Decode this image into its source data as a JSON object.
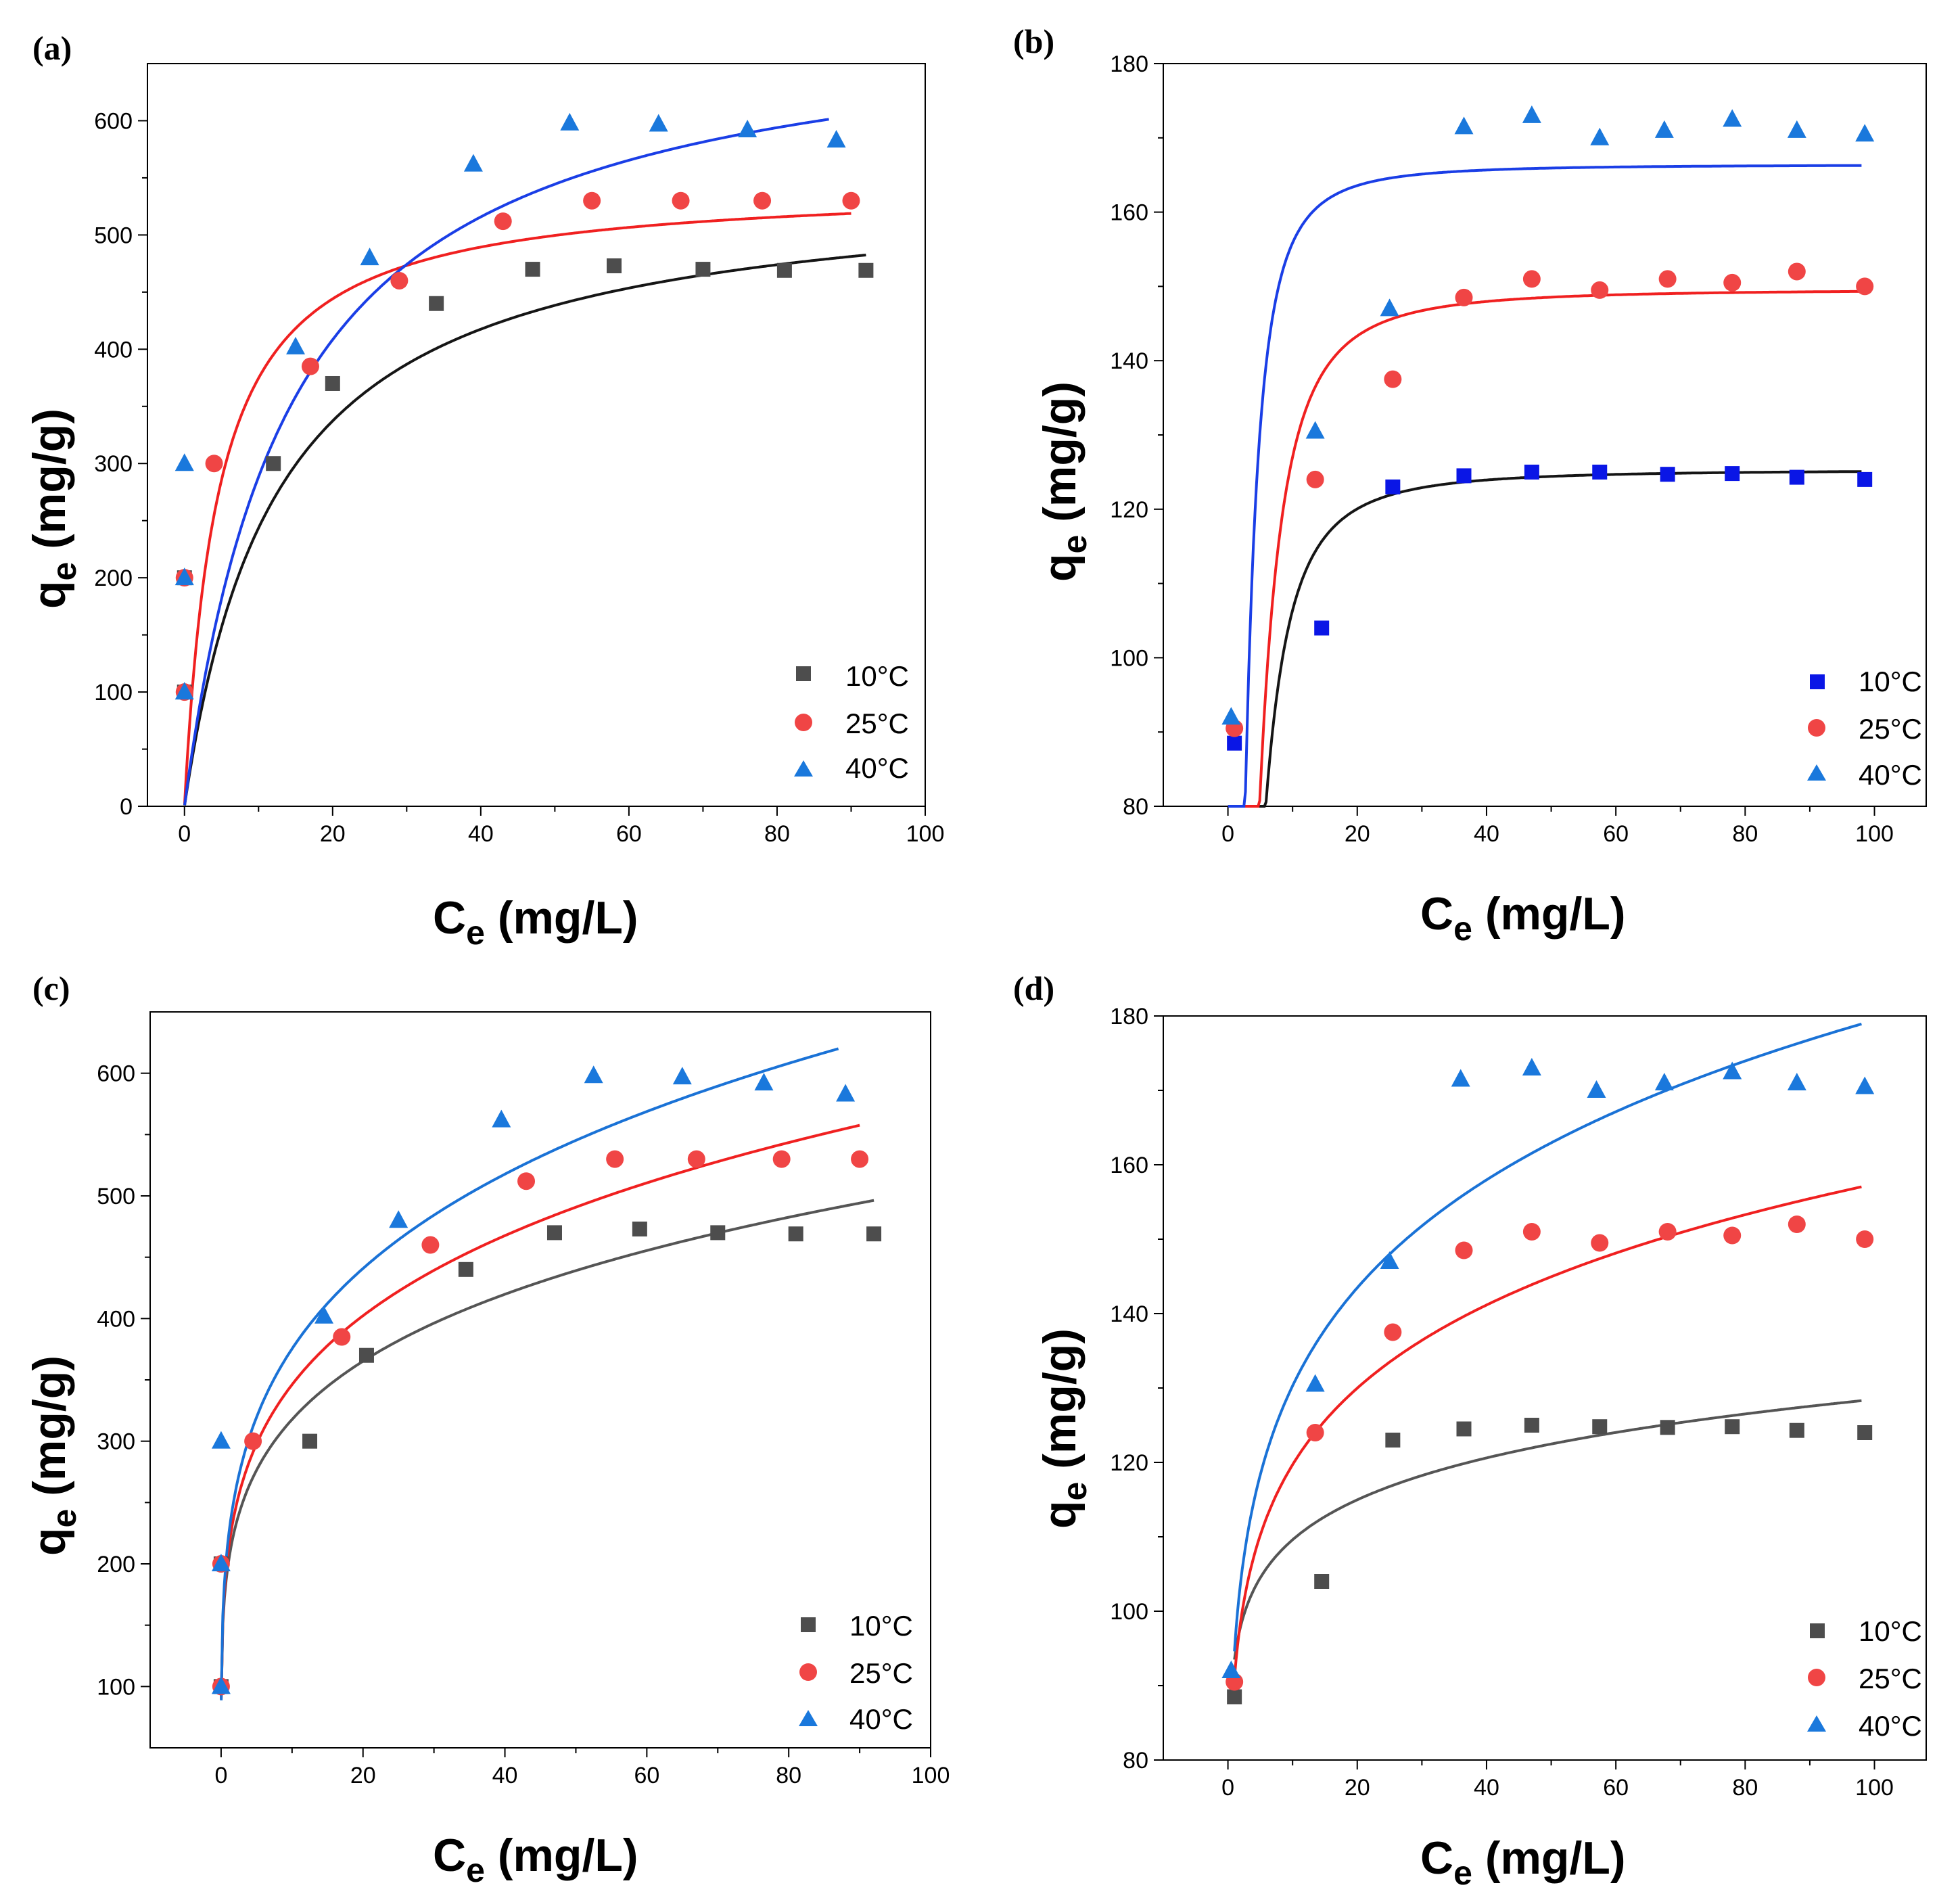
{
  "panels": [
    {
      "label": "(a)",
      "xlabel_main": "C",
      "xlabel_sub": "e",
      "xlabel_unit": " (mg/L)",
      "ylabel_main": "q",
      "ylabel_sub": "e",
      "ylabel_unit": " (mg/g)",
      "legend": [
        "10°C",
        "25°C",
        "40°C"
      ]
    },
    {
      "label": "(b)",
      "xlabel_main": "C",
      "xlabel_sub": "e",
      "xlabel_unit": " (mg/L)",
      "ylabel_main": "q",
      "ylabel_sub": "e",
      "ylabel_unit": " (mg/g)",
      "legend": [
        "10°C",
        "25°C",
        "40°C"
      ]
    },
    {
      "label": "(c)",
      "xlabel_main": "C",
      "xlabel_sub": "e",
      "xlabel_unit": " (mg/L)",
      "ylabel_main": "q",
      "ylabel_sub": "e",
      "ylabel_unit": " (mg/g)",
      "legend": [
        "10°C",
        "25°C",
        "40°C"
      ]
    },
    {
      "label": "(d)",
      "xlabel_main": "C",
      "xlabel_sub": "e",
      "xlabel_unit": " (mg/L)",
      "ylabel_main": "q",
      "ylabel_sub": "e",
      "ylabel_unit": " (mg/g)",
      "legend": [
        "10°C",
        "25°C",
        "40°C"
      ]
    }
  ],
  "colors": {
    "s10": "#4d4d4d",
    "s10_b": "#0a16e6",
    "s10_fit_a": "#151515",
    "s10_fit_d": "#555555",
    "s25": "#f04545",
    "s25_line": "#f02020",
    "s40": "#1a78dc",
    "s40_line": "#1a3ee6",
    "s40_line_c": "#1a72d6"
  },
  "chart_data": [
    {
      "type": "scatter",
      "panel": "a",
      "xlim": [
        -5,
        100
      ],
      "ylim": [
        0,
        650
      ],
      "xticks": [
        0,
        20,
        40,
        60,
        80,
        100
      ],
      "yticks": [
        0,
        100,
        200,
        300,
        400,
        500,
        600
      ],
      "xlabel": "Ce (mg/L)",
      "ylabel": "qe (mg/g)",
      "series": [
        {
          "name": "10°C",
          "marker": "square",
          "x": [
            0,
            0,
            12,
            20,
            34,
            47,
            58,
            70,
            81,
            92
          ],
          "y": [
            100,
            200,
            300,
            370,
            440,
            470,
            473,
            470,
            469,
            469
          ],
          "fit": {
            "model": "langmuir",
            "qm": 548,
            "K": 0.08,
            "x_end": 92
          }
        },
        {
          "name": "25°C",
          "marker": "circle",
          "x": [
            0,
            0,
            4,
            17,
            29,
            43,
            55,
            67,
            78,
            90
          ],
          "y": [
            100,
            200,
            300,
            385,
            460,
            512,
            530,
            530,
            530,
            530
          ],
          "fit": {
            "model": "langmuir",
            "qm": 545,
            "K": 0.22,
            "x_end": 90
          }
        },
        {
          "name": "40°C",
          "marker": "triangle",
          "x": [
            0,
            0,
            0,
            15,
            25,
            39,
            52,
            64,
            76,
            88
          ],
          "y": [
            100,
            200,
            300,
            402,
            480,
            562,
            598,
            597,
            592,
            583
          ],
          "fit": {
            "model": "langmuir",
            "qm": 700,
            "K": 0.07,
            "x_end": 87
          }
        }
      ]
    },
    {
      "type": "scatter",
      "panel": "b",
      "xlim": [
        -10,
        108
      ],
      "ylim": [
        80,
        180
      ],
      "xticks": [
        0,
        20,
        40,
        60,
        80,
        100
      ],
      "yticks": [
        80,
        100,
        120,
        140,
        160,
        180
      ],
      "xlabel": "Ce (mg/L)",
      "ylabel": "qe (mg/g)",
      "series": [
        {
          "name": "10°C",
          "marker": "square",
          "x": [
            1,
            14.5,
            25.5,
            36.5,
            47,
            57.5,
            68,
            78,
            88,
            98.5
          ],
          "y": [
            88.5,
            104,
            123,
            124.5,
            125,
            125,
            124.7,
            124.8,
            124.3,
            124
          ],
          "fit": {
            "model": "dr",
            "qm": 125.3,
            "B": 3.0,
            "x_end": 98
          }
        },
        {
          "name": "25°C",
          "marker": "circle",
          "x": [
            1,
            13.5,
            25.5,
            36.5,
            47,
            57.5,
            68,
            78,
            88,
            98.5
          ],
          "y": [
            90.5,
            124,
            137.5,
            148.5,
            151,
            149.5,
            151,
            150.5,
            152,
            150
          ],
          "fit": {
            "model": "dr",
            "qm": 149.6,
            "B": 3.0,
            "x_end": 98
          }
        },
        {
          "name": "40°C",
          "marker": "triangle",
          "x": [
            0.5,
            13.5,
            25,
            36.5,
            47,
            57.5,
            67.5,
            78,
            88,
            98.5
          ],
          "y": [
            92,
            130.5,
            147,
            171.5,
            173,
            170,
            171,
            172.5,
            171,
            170.5
          ],
          "fit": {
            "model": "dr",
            "qm": 166.4,
            "B": 1.2,
            "x_end": 98
          }
        }
      ]
    },
    {
      "type": "scatter",
      "panel": "c",
      "xlim": [
        -10,
        100
      ],
      "ylim": [
        50,
        650
      ],
      "xticks": [
        0,
        20,
        40,
        60,
        80,
        100
      ],
      "yticks": [
        100,
        200,
        300,
        400,
        500,
        600
      ],
      "xlabel": "Ce (mg/L)",
      "ylabel": "qe (mg/g)",
      "series": [
        {
          "name": "10°C",
          "marker": "square",
          "x": [
            0,
            0,
            12.5,
            20.5,
            34.5,
            47,
            59,
            70,
            81,
            92
          ],
          "y": [
            100,
            200,
            300,
            370,
            440,
            470,
            473,
            470,
            469,
            469
          ],
          "fit": {
            "model": "freundlich",
            "K": 200,
            "n": 0.201,
            "x_end": 92
          }
        },
        {
          "name": "25°C",
          "marker": "circle",
          "x": [
            0,
            0,
            4.5,
            17,
            29.5,
            43,
            55.5,
            67,
            79,
            90
          ],
          "y": [
            100,
            200,
            300,
            385,
            460,
            512,
            530,
            530,
            530,
            530
          ],
          "fit": {
            "model": "freundlich",
            "K": 210,
            "n": 0.217,
            "x_end": 90
          }
        },
        {
          "name": "40°C",
          "marker": "triangle",
          "x": [
            0,
            0,
            0,
            14.5,
            25,
            39.5,
            52.5,
            65,
            76.5,
            88
          ],
          "y": [
            100,
            200,
            300,
            402,
            480,
            562,
            598,
            597,
            592,
            583
          ],
          "fit": {
            "model": "freundlich",
            "K": 220,
            "n": 0.232,
            "x_end": 87
          }
        }
      ]
    },
    {
      "type": "scatter",
      "panel": "d",
      "xlim": [
        -10,
        108
      ],
      "ylim": [
        80,
        180
      ],
      "xticks": [
        0,
        20,
        40,
        60,
        80,
        100
      ],
      "yticks": [
        80,
        100,
        120,
        140,
        160,
        180
      ],
      "xlabel": "Ce (mg/L)",
      "ylabel": "qe (mg/g)",
      "series": [
        {
          "name": "10°C",
          "marker": "square",
          "x": [
            1,
            14.5,
            25.5,
            36.5,
            47,
            57.5,
            68,
            78,
            88,
            98.5
          ],
          "y": [
            88.5,
            104,
            123,
            124.5,
            125,
            124.8,
            124.7,
            124.8,
            124.3,
            124
          ],
          "fit": {
            "model": "freundlich",
            "K": 93.5,
            "n": 0.069,
            "x_start": 1,
            "x_end": 98
          }
        },
        {
          "name": "25°C",
          "marker": "circle",
          "x": [
            1,
            13.5,
            25.5,
            36.5,
            47,
            57.5,
            68,
            78,
            88,
            98.5
          ],
          "y": [
            90.5,
            124,
            137.5,
            148.5,
            151,
            149.5,
            151,
            150.5,
            152,
            150
          ],
          "fit": {
            "model": "freundlich",
            "K": 91,
            "n": 0.119,
            "x_start": 1,
            "x_end": 98
          }
        },
        {
          "name": "40°C",
          "marker": "triangle",
          "x": [
            0.5,
            13.5,
            25,
            36,
            47,
            57,
            67.5,
            78,
            88,
            98.5
          ],
          "y": [
            92,
            130.5,
            147,
            171.5,
            173,
            170,
            171,
            172.5,
            171,
            170.5
          ],
          "fit": {
            "model": "freundlich",
            "K": 94.6,
            "n": 0.139,
            "x_start": 1,
            "x_end": 98
          }
        }
      ]
    }
  ]
}
